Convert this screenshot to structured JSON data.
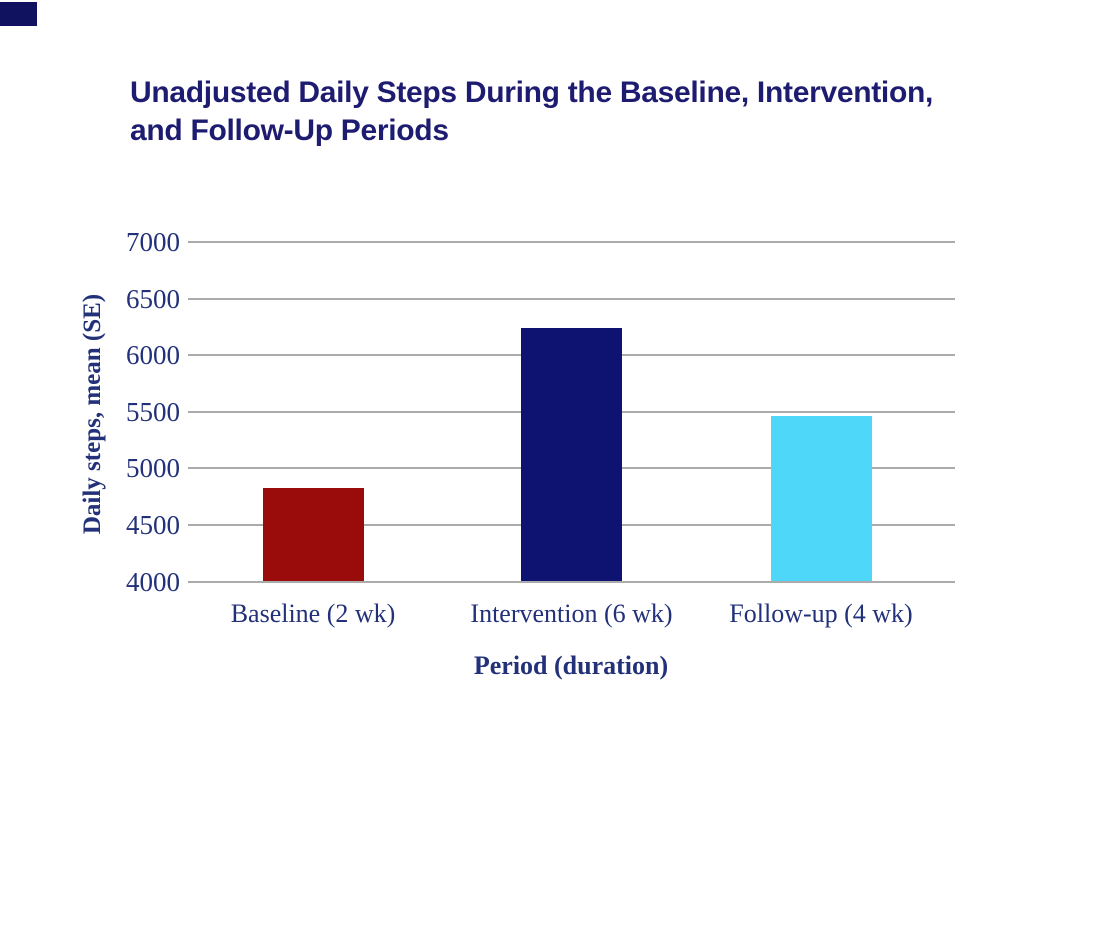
{
  "page": {
    "background": "#ffffff",
    "corner_mark_color": "#11125f"
  },
  "title": {
    "line1": "Unadjusted Daily Steps During the Baseline, Intervention,",
    "line2": "and Follow-Up Periods",
    "color": "#1e1c70"
  },
  "chart_data": {
    "type": "bar",
    "title": "Unadjusted Daily Steps During the Baseline, Intervention, and Follow-Up Periods",
    "xlabel": "Period (duration)",
    "ylabel": "Daily steps, mean (SE)",
    "categories": [
      "Baseline (2 wk)",
      "Intervention (6 wk)",
      "Follow-up (4 wk)"
    ],
    "values": [
      4830,
      6240,
      5460
    ],
    "bar_colors": [
      "#9a0b0b",
      "#0e1270",
      "#4ed7f9"
    ],
    "ylim": [
      4000,
      7000
    ],
    "yticks": [
      4000,
      4500,
      5000,
      5500,
      6000,
      6500,
      7000
    ],
    "grid": "horizontal",
    "gridline_color": "#ababab",
    "axis_text_color": "#223179",
    "legend": "none"
  }
}
